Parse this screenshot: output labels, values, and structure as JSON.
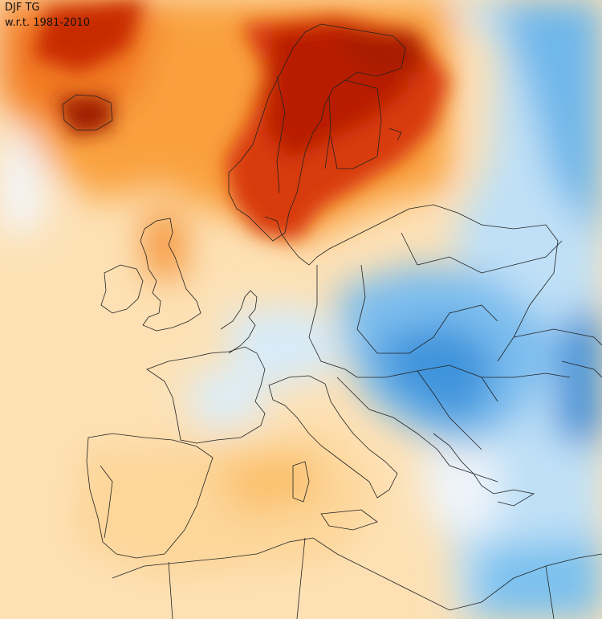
{
  "map": {
    "variable_label": "DJF TG",
    "reference_label": "w.r.t. 1981-2010",
    "colors": {
      "dark_red": "#b81c00",
      "red": "#de3a0b",
      "orange": "#f58a2a",
      "light_orange": "#fbc06a",
      "pale": "#fde8c6",
      "white": "#f6f8fc",
      "light_blue": "#bfe0f6",
      "blue": "#5eb2ea",
      "deep_blue": "#1e7fd0",
      "border_line": "#222222"
    }
  }
}
